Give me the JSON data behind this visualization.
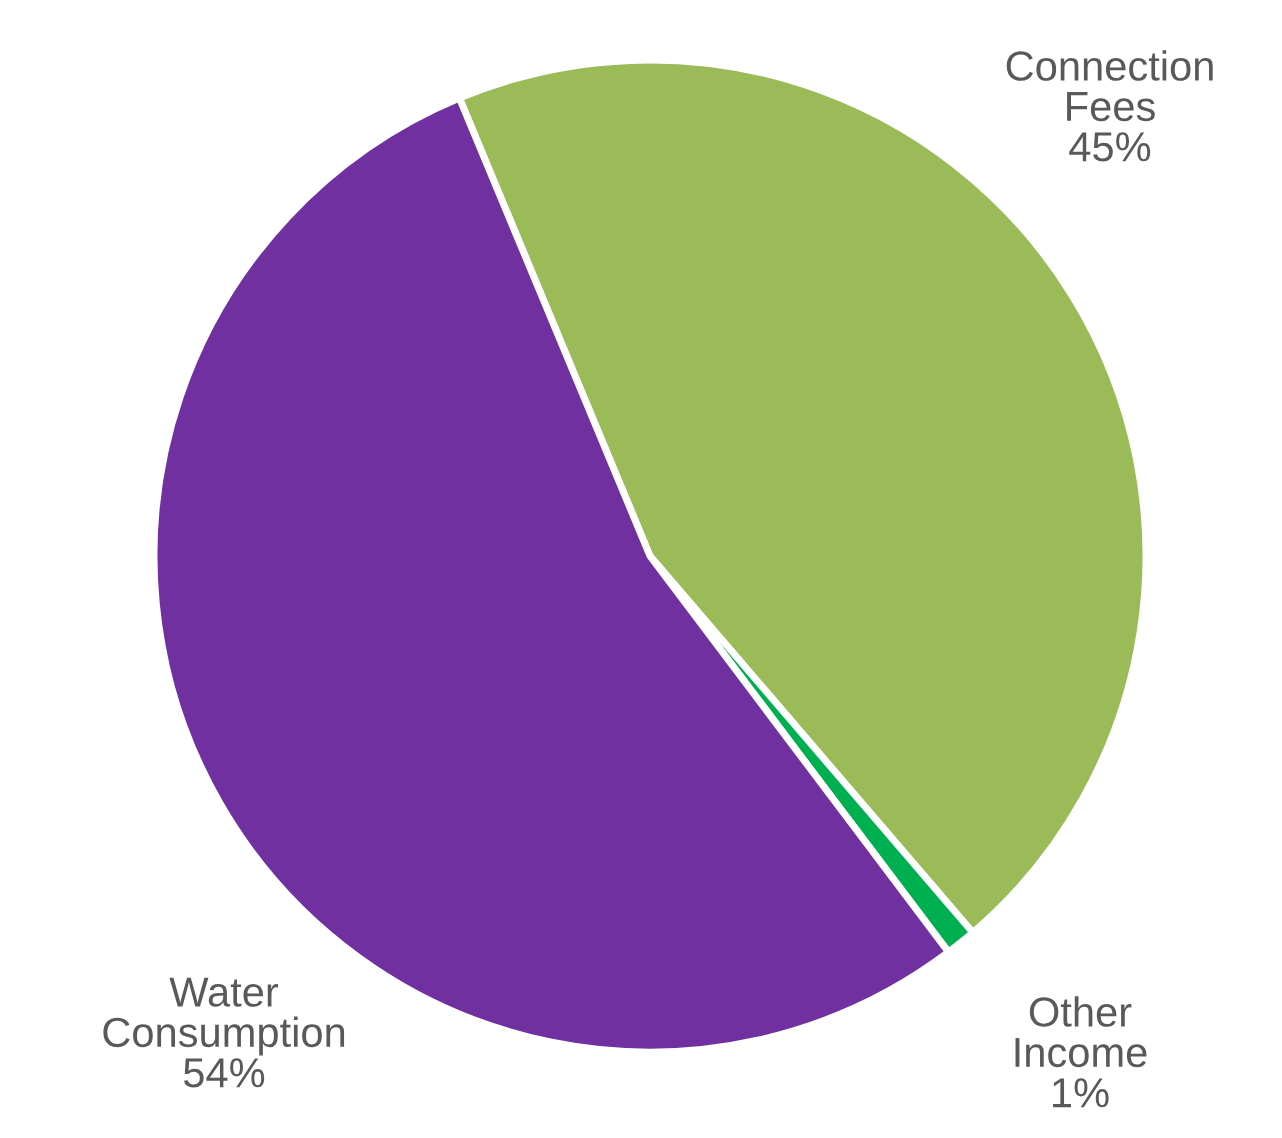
{
  "chart_data": {
    "type": "pie",
    "categories": [
      "Connection Fees",
      "Other Income",
      "Water Consumption"
    ],
    "values": [
      45,
      1,
      54
    ],
    "colors": [
      "#9bbb59",
      "#00b050",
      "#7030a0"
    ],
    "value_labels": [
      "45%",
      "1%",
      "54%"
    ]
  }
}
